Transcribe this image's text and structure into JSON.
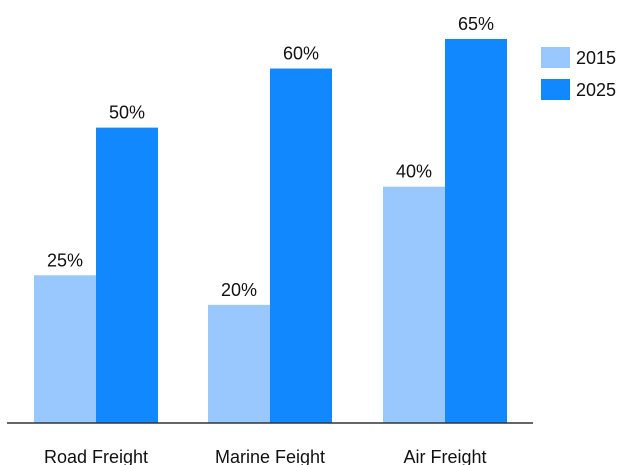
{
  "chart_data": {
    "type": "bar",
    "categories": [
      "Road Freight",
      "Marine Feight",
      "Air Freight"
    ],
    "series": [
      {
        "name": "2015",
        "values": [
          25,
          20,
          40
        ],
        "labels": [
          "25%",
          "20%",
          "40%"
        ],
        "color": "#99c8ff"
      },
      {
        "name": "2025",
        "values": [
          50,
          60,
          65
        ],
        "labels": [
          "50%",
          "60%",
          "65%"
        ],
        "color": "#1288ff"
      }
    ],
    "ylim": [
      0,
      65
    ],
    "grid": false,
    "legend": "top-right"
  }
}
